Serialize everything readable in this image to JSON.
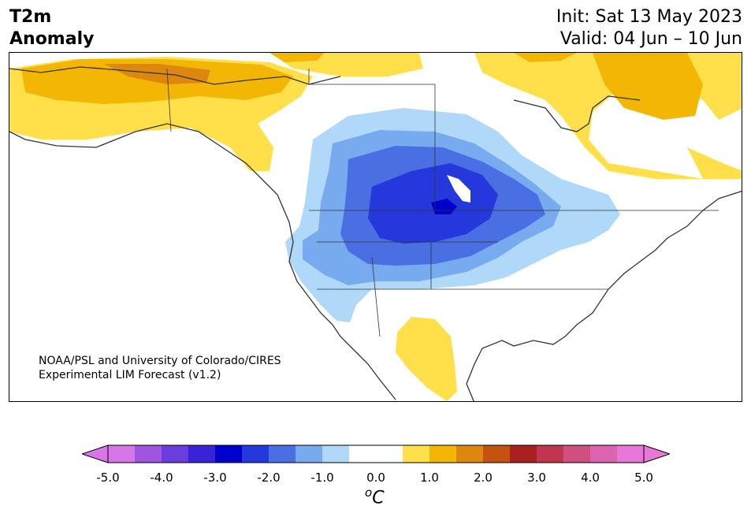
{
  "header": {
    "title_line1": "T2m",
    "title_line2": "Anomaly",
    "init_label": "Init: Sat 13 May 2023",
    "valid_label": "Valid: 04 Jun – 10 Jun"
  },
  "credit": {
    "line1": "NOAA/PSL and University of Colorado/CIRES",
    "line2": "Experimental LIM Forecast (v1.2)"
  },
  "colorbar": {
    "unit_base": "C",
    "unit_sup": "o",
    "tick_labels": [
      "-5.0",
      "-4.0",
      "-3.0",
      "-2.0",
      "-1.0",
      "0.0",
      "1.0",
      "2.0",
      "3.0",
      "4.0",
      "5.0"
    ],
    "colors": [
      "#d875e8",
      "#9f55e0",
      "#6a3ddc",
      "#3a23d6",
      "#0000cc",
      "#2438dc",
      "#4a6fe3",
      "#78aaf0",
      "#b0d9f9",
      "#ffffff",
      "#ffffff",
      "#ffe04b",
      "#f3b605",
      "#de870f",
      "#c45210",
      "#a82020",
      "#c0354f",
      "#cf4f80",
      "#dd63b0",
      "#e877d8"
    ],
    "under_color": "#d875e8",
    "over_color": "#e877d8"
  },
  "map": {
    "colors": {
      "warm_light": "#ffe04b",
      "warm_mid": "#f3b605",
      "warm_dark": "#de870f",
      "cool_1": "#b0d9f9",
      "cool_2": "#78aaf0",
      "cool_3": "#4a6fe3",
      "cool_4": "#2438dc",
      "cool_5": "#0000cc",
      "coast": "#333333"
    }
  }
}
